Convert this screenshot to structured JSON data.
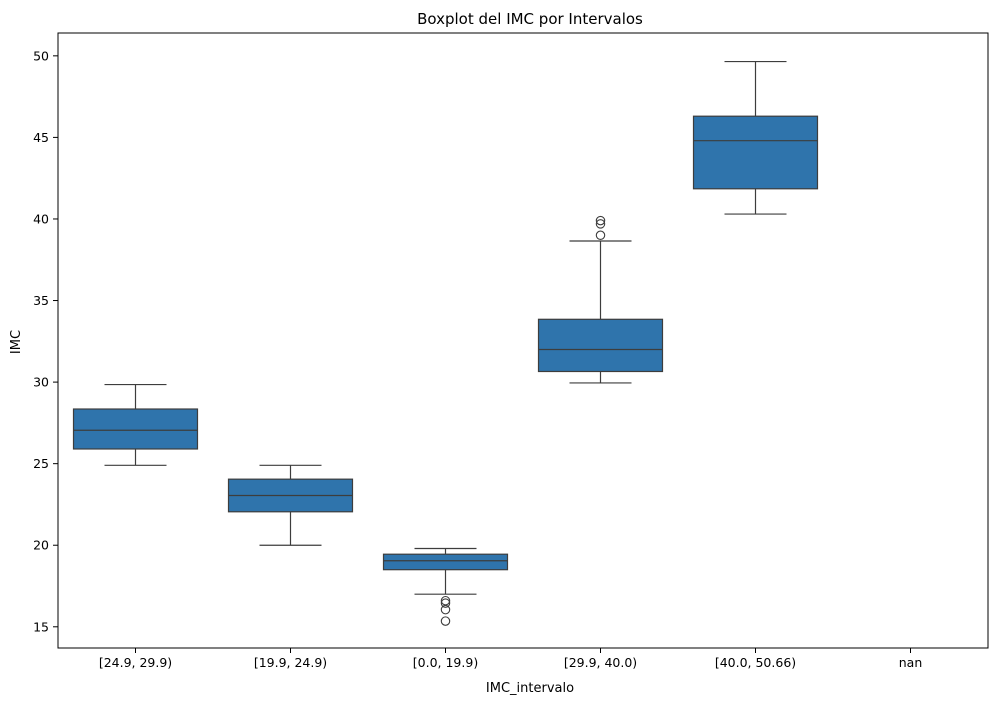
{
  "chart_data": {
    "type": "boxplot",
    "title": "Boxplot del IMC por Intervalos",
    "xlabel": "IMC_intervalo",
    "ylabel": "IMC",
    "ylim": [
      13.7,
      51.4
    ],
    "yticks": [
      15,
      20,
      25,
      30,
      35,
      40,
      45,
      50
    ],
    "categories": [
      "[24.9, 29.9)",
      "[19.9, 24.9)",
      "[0.0, 19.9)",
      "[29.9, 40.0)",
      "[40.0, 50.66)",
      "nan"
    ],
    "grid": false,
    "box_color": "#2f74ac",
    "line_color": "#3d3d3d",
    "boxes": [
      {
        "category": "[24.9, 29.9)",
        "whislo": 24.9,
        "q1": 25.9,
        "med": 27.05,
        "q3": 28.35,
        "whishi": 29.85,
        "fliers": []
      },
      {
        "category": "[19.9, 24.9)",
        "whislo": 20.0,
        "q1": 22.05,
        "med": 23.05,
        "q3": 24.05,
        "whishi": 24.9,
        "fliers": []
      },
      {
        "category": "[0.0, 19.9)",
        "whislo": 17.0,
        "q1": 18.5,
        "med": 19.05,
        "q3": 19.45,
        "whishi": 19.8,
        "fliers": [
          16.6,
          16.45,
          16.05,
          15.35
        ]
      },
      {
        "category": "[29.9, 40.0)",
        "whislo": 29.95,
        "q1": 30.65,
        "med": 32.0,
        "q3": 33.85,
        "whishi": 38.65,
        "fliers": [
          39.9,
          39.7,
          39.0
        ]
      },
      {
        "category": "[40.0, 50.66)",
        "whislo": 40.3,
        "q1": 41.85,
        "med": 44.8,
        "q3": 46.3,
        "whishi": 49.65,
        "fliers": []
      },
      {
        "category": "nan",
        "empty": true
      }
    ]
  }
}
